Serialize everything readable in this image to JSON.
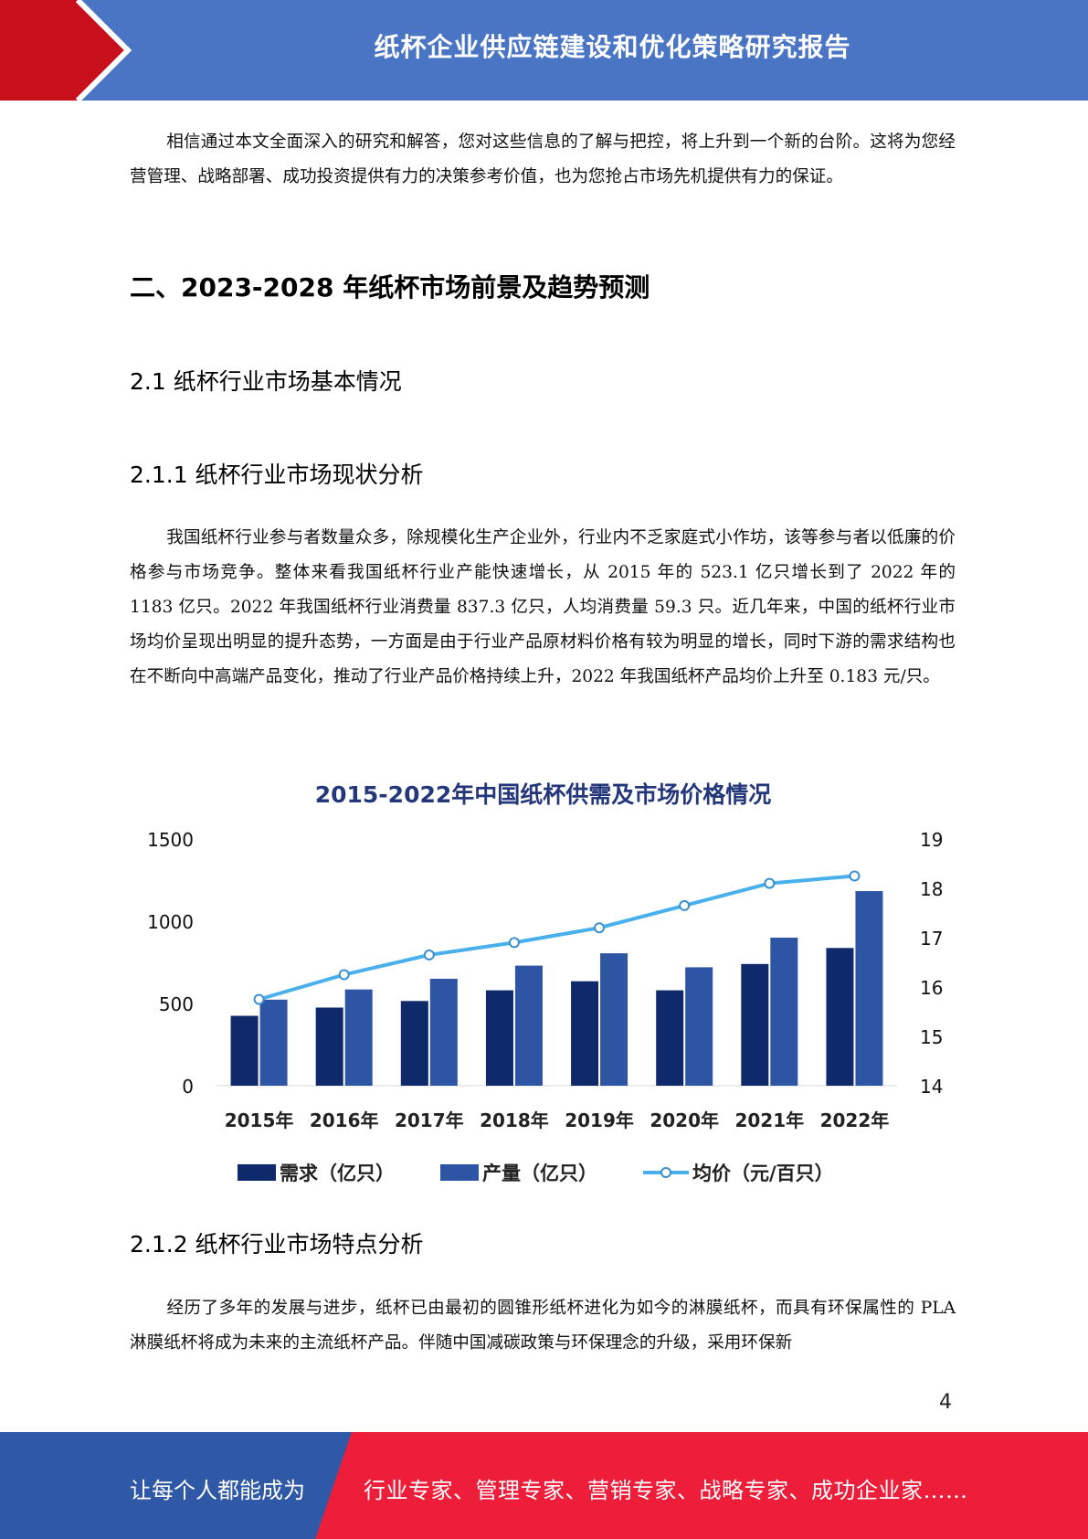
{
  "header": {
    "title": "纸杯企业供应链建设和优化策略研究报告"
  },
  "intro": {
    "text": "相信通过本文全面深入的研究和解答，您对这些信息的了解与把控，将上升到一个新的台阶。这将为您经营管理、战略部署、成功投资提供有力的决策参考价值，也为您抢占市场先机提供有力的保证。"
  },
  "section2": {
    "title": "二、2023-2028 年纸杯市场前景及趋势预测"
  },
  "sub21": {
    "title": "2.1 纸杯行业市场基本情况"
  },
  "sub211": {
    "title": "2.1.1 纸杯行业市场现状分析",
    "text": "我国纸杯行业参与者数量众多，除规模化生产企业外，行业内不乏家庭式小作坊，该等参与者以低廉的价格参与市场竞争。整体来看我国纸杯行业产能快速增长，从 2015 年的 523.1 亿只增长到了 2022 年的 1183 亿只。2022 年我国纸杯行业消费量 837.3 亿只，人均消费量 59.3 只。近几年来，中国的纸杯行业市场均价呈现出明显的提升态势，一方面是由于行业产品原材料价格有较为明显的增长，同时下游的需求结构也在不断向中高端产品变化，推动了行业产品价格持续上升，2022 年我国纸杯产品均价上升至 0.183 元/只。"
  },
  "chart_data": {
    "type": "bar",
    "title": "2015-2022年中国纸杯供需及市场价格情况",
    "categories": [
      "2015年",
      "2016年",
      "2017年",
      "2018年",
      "2019年",
      "2020年",
      "2021年",
      "2022年"
    ],
    "series": [
      {
        "name": "需求（亿只）",
        "type": "bar",
        "axis": "left",
        "color": "#0e2a6b",
        "values": [
          425,
          475,
          515,
          580,
          635,
          580,
          740,
          837.3
        ]
      },
      {
        "name": "产量（亿只）",
        "type": "bar",
        "axis": "left",
        "color": "#2e55a3",
        "values": [
          523.1,
          585,
          650,
          730,
          805,
          720,
          900,
          1183
        ]
      },
      {
        "name": "均价（元/百只）",
        "type": "line",
        "axis": "right",
        "color": "#49b0ec",
        "values": [
          15.75,
          16.25,
          16.65,
          16.9,
          17.2,
          17.65,
          18.1,
          18.25
        ]
      }
    ],
    "ylim_left": [
      0,
      1500
    ],
    "yticks_left": [
      "0",
      "500",
      "1000",
      "1500"
    ],
    "ylim_right": [
      14,
      19
    ],
    "yticks_right": [
      "14",
      "15",
      "16",
      "17",
      "18",
      "19"
    ],
    "legend_position": "bottom",
    "grid": false
  },
  "sub212": {
    "title": "2.1.2 纸杯行业市场特点分析",
    "text": "经历了多年的发展与进步，纸杯已由最初的圆锥形纸杯进化为如今的淋膜纸杯，而具有环保属性的 PLA 淋膜纸杯将成为未来的主流纸杯产品。伴随中国减碳政策与环保理念的升级，采用环保新"
  },
  "page": {
    "number": "4"
  },
  "footer": {
    "left": "让每个人都能成为",
    "right": "行业专家、管理专家、营销专家、战略专家、成功企业家……"
  },
  "colors": {
    "header_blue": "#4a74c4",
    "header_red": "#c8101c",
    "footer_blue": "#2f58a6",
    "footer_red": "#ee1d3a"
  }
}
